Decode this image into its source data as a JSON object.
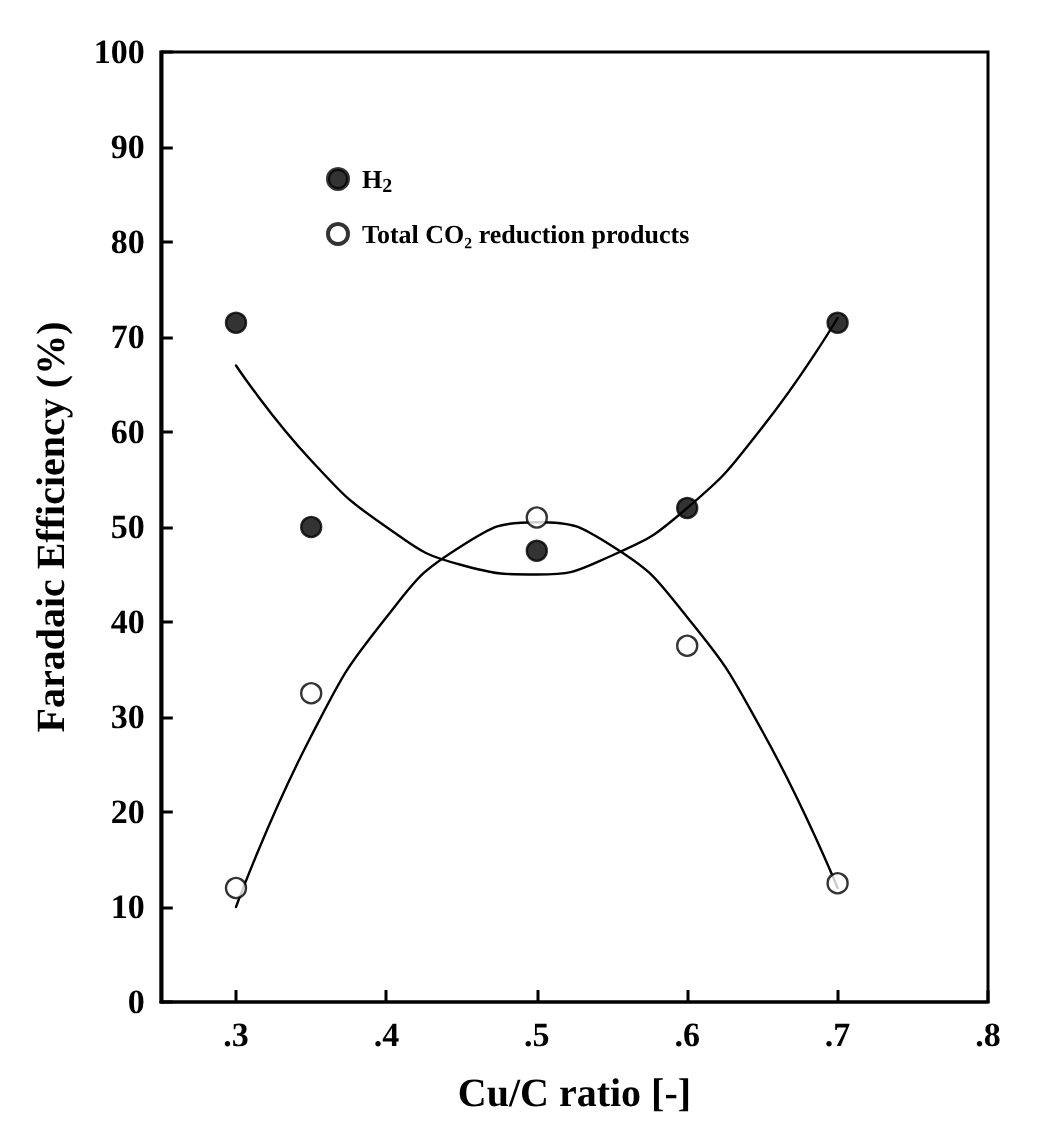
{
  "chart_data": {
    "type": "scatter",
    "xlabel": "Cu/C ratio [-]",
    "ylabel": "Faradaic Efficiency (%)",
    "xlim": [
      0.25,
      0.8
    ],
    "xticks": [
      {
        "value": 0.3,
        "label": ".3"
      },
      {
        "value": 0.4,
        "label": ".4"
      },
      {
        "value": 0.5,
        "label": ".5"
      },
      {
        "value": 0.6,
        "label": ".6"
      },
      {
        "value": 0.7,
        "label": ".7"
      },
      {
        "value": 0.8,
        "label": ".8"
      }
    ],
    "ylim": [
      0,
      100
    ],
    "yticks": [
      0,
      10,
      20,
      30,
      40,
      50,
      60,
      70,
      80,
      90,
      100
    ],
    "grid": false,
    "legend": "top left",
    "marker": "circle",
    "series": [
      {
        "name": "H$_{2}$",
        "color": "#000000",
        "x": [
          0.3,
          0.35,
          0.5,
          0.6,
          0.7
        ],
        "values": [
          71.5,
          50,
          47.5,
          52,
          71.5
        ]
      },
      {
        "name": "Total CO₂ reduction products",
        "color": "#ffffff",
        "x": [
          0.3,
          0.35,
          0.5,
          0.6,
          0.7
        ],
        "values": [
          12,
          32.5,
          51,
          37.5,
          12.5
        ]
      },
      {
        "type": "line",
        "marker": "none",
        "color": "#000000",
        "x": [
          0.3,
          0.35,
          0.4,
          0.45,
          0.5,
          0.55,
          0.6,
          0.65,
          0.7
        ],
        "values": [
          67,
          57,
          50,
          46,
          45,
          47,
          52,
          60.5,
          72
        ]
      },
      {
        "type": "line",
        "marker": "none",
        "color": "#000000",
        "x": [
          0.3,
          0.35,
          0.4,
          0.45,
          0.5,
          0.55,
          0.6,
          0.65,
          0.7
        ],
        "values": [
          10,
          28,
          40.5,
          48,
          50.5,
          48,
          40.5,
          28.5,
          12
        ]
      }
    ]
  }
}
